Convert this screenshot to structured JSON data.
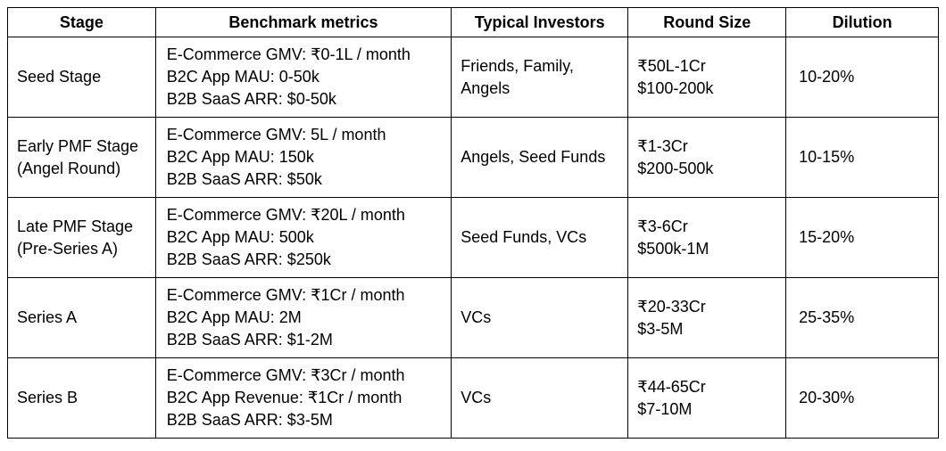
{
  "headers": {
    "stage": "Stage",
    "benchmark": "Benchmark metrics",
    "investors": "Typical Investors",
    "round_size": "Round Size",
    "dilution": "Dilution"
  },
  "rows": [
    {
      "stage": [
        "Seed Stage"
      ],
      "benchmark": [
        "E-Commerce GMV: ₹0-1L / month",
        "B2C App MAU: 0-50k",
        "B2B SaaS ARR: $0-50k"
      ],
      "investors": [
        "Friends, Family,",
        "Angels"
      ],
      "round_size": [
        "₹50L-1Cr",
        "$100-200k"
      ],
      "dilution": "10-20%"
    },
    {
      "stage": [
        "Early PMF Stage",
        "(Angel Round)"
      ],
      "benchmark": [
        "E-Commerce GMV: 5L / month",
        "B2C App MAU: 150k",
        "B2B SaaS ARR: $50k"
      ],
      "investors": [
        "Angels, Seed Funds"
      ],
      "round_size": [
        "₹1-3Cr",
        "$200-500k"
      ],
      "dilution": "10-15%"
    },
    {
      "stage": [
        "Late PMF Stage",
        "(Pre-Series A)"
      ],
      "benchmark": [
        "E-Commerce GMV: ₹20L / month",
        "B2C App MAU: 500k",
        "B2B SaaS ARR: $250k"
      ],
      "investors": [
        "Seed Funds, VCs"
      ],
      "round_size": [
        "₹3-6Cr",
        "$500k-1M"
      ],
      "dilution": "15-20%"
    },
    {
      "stage": [
        "Series A"
      ],
      "benchmark": [
        "E-Commerce GMV: ₹1Cr / month",
        "B2C App MAU: 2M",
        "B2B SaaS ARR: $1-2M"
      ],
      "investors": [
        "VCs"
      ],
      "round_size": [
        "₹20-33Cr",
        "$3-5M"
      ],
      "dilution": "25-35%"
    },
    {
      "stage": [
        "Series B"
      ],
      "benchmark": [
        "E-Commerce GMV: ₹3Cr / month",
        "B2C App Revenue: ₹1Cr / month",
        "B2B SaaS ARR: $3-5M"
      ],
      "investors": [
        "VCs"
      ],
      "round_size": [
        "₹44-65Cr",
        "$7-10M"
      ],
      "dilution": "20-30%"
    }
  ]
}
